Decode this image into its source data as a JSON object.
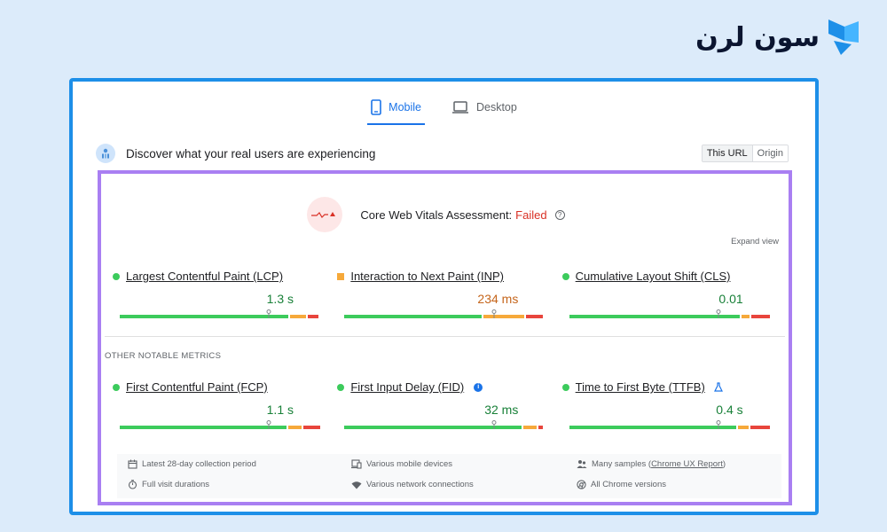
{
  "brand": {
    "name": "سون لرن"
  },
  "tabs": [
    {
      "label": "Mobile",
      "active": true
    },
    {
      "label": "Desktop",
      "active": false
    }
  ],
  "discover": {
    "title": "Discover what your real users are experiencing",
    "scope_options": [
      "This URL",
      "Origin"
    ],
    "scope_selected": "This URL"
  },
  "assessment": {
    "label": "Core Web Vitals Assessment:",
    "status": "Failed",
    "expand_label": "Expand view"
  },
  "core_metrics": [
    {
      "name": "Largest Contentful Paint (LCP)",
      "value": "1.3 s",
      "rating": "good",
      "color": "#188038"
    },
    {
      "name": "Interaction to Next Paint (INP)",
      "value": "234 ms",
      "rating": "needs-improvement",
      "color": "#c5651b"
    },
    {
      "name": "Cumulative Layout Shift (CLS)",
      "value": "0.01",
      "rating": "good",
      "color": "#188038"
    }
  ],
  "other_label": "OTHER NOTABLE METRICS",
  "other_metrics": [
    {
      "name": "First Contentful Paint (FCP)",
      "value": "1.1 s",
      "rating": "good",
      "color": "#188038"
    },
    {
      "name": "First Input Delay (FID)",
      "value": "32 ms",
      "rating": "good",
      "color": "#188038"
    },
    {
      "name": "Time to First Byte (TTFB)",
      "value": "0.4 s",
      "rating": "good",
      "color": "#188038"
    }
  ],
  "footer": {
    "collection_period": "Latest 28-day collection period",
    "devices": "Various mobile devices",
    "samples_prefix": "Many samples (",
    "samples_link": "Chrome UX Report",
    "samples_suffix": ")",
    "durations": "Full visit durations",
    "connections": "Various network connections",
    "versions": "All Chrome versions"
  },
  "colors": {
    "good": "#3ccb5c",
    "needs_improvement": "#f6a93a",
    "poor": "#e8453c",
    "accent": "#1a73e8",
    "frame": "#1d8fe8",
    "highlight": "#a97ff2"
  }
}
